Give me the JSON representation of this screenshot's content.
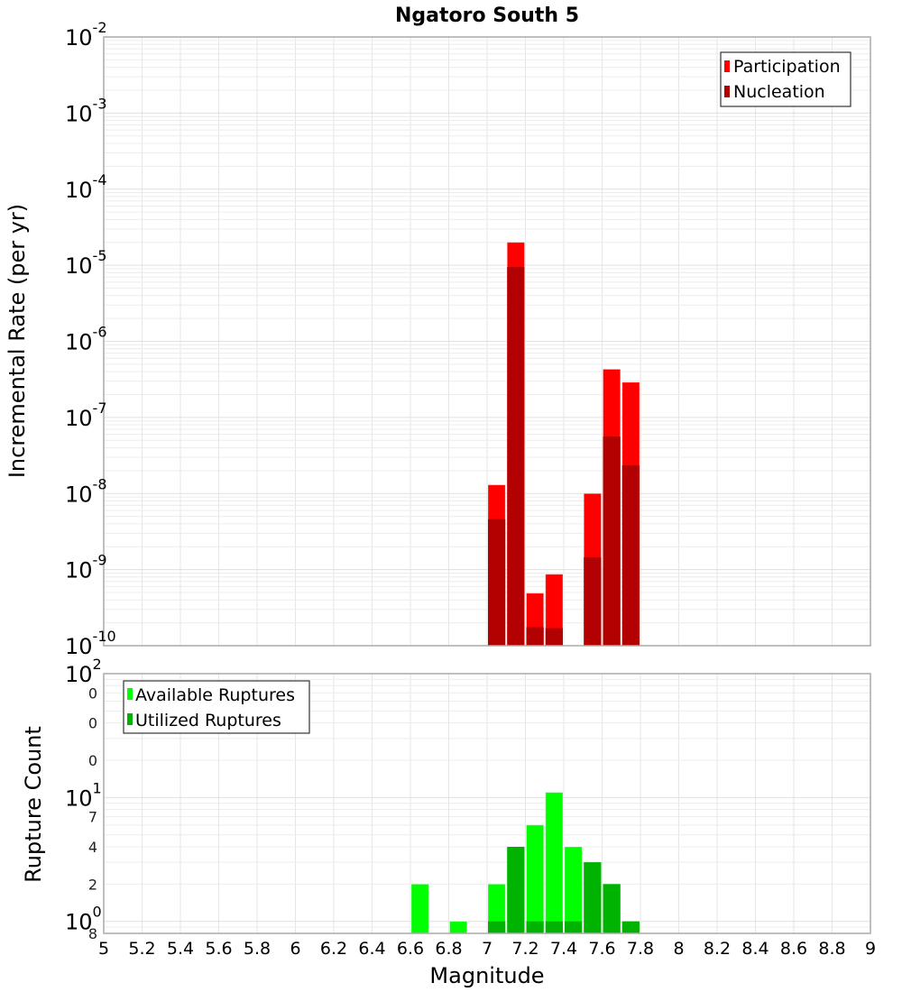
{
  "chart_data": [
    {
      "type": "bar",
      "title": "Ngatoro South 5",
      "xlabel": "Magnitude",
      "ylabel": "Incremental Rate (per yr)",
      "yscale": "log",
      "ylim": [
        1e-10,
        0.01
      ],
      "xlim": [
        5,
        9
      ],
      "grid": true,
      "legend_position": "upper right",
      "bar_width": 0.1,
      "x": [
        7.05,
        7.15,
        7.25,
        7.35,
        7.55,
        7.65,
        7.75
      ],
      "series": [
        {
          "name": "Participation",
          "color": "#ff0000",
          "values": [
            1.3e-08,
            2e-05,
            4.9e-10,
            8.7e-10,
            1e-08,
            4.3e-07,
            2.9e-07
          ]
        },
        {
          "name": "Nucleation",
          "color": "#b30000",
          "values": [
            4.6e-09,
            9.5e-06,
            1.75e-10,
            1.7e-10,
            1.45e-09,
            5.6e-08,
            2.35e-08
          ]
        }
      ],
      "y_ticks": [
        "10^-2",
        "10^-3",
        "10^-4",
        "10^-5",
        "10^-6",
        "10^-7",
        "10^-8",
        "10^-9",
        "10^-10"
      ]
    },
    {
      "type": "bar",
      "title": "",
      "xlabel": "Magnitude",
      "ylabel": "Rupture Count",
      "yscale": "log",
      "ylim": [
        0.8,
        100
      ],
      "xlim": [
        5,
        9
      ],
      "grid": true,
      "legend_position": "upper left",
      "bar_width": 0.1,
      "x": [
        6.65,
        6.85,
        7.05,
        7.15,
        7.25,
        7.35,
        7.45,
        7.55,
        7.65,
        7.75
      ],
      "series": [
        {
          "name": "Available Ruptures",
          "color": "#00ff00",
          "values": [
            2,
            1,
            2,
            4,
            6,
            11,
            4,
            3,
            2,
            1
          ]
        },
        {
          "name": "Utilized Ruptures",
          "color": "#00b300",
          "values": [
            0,
            0,
            1,
            4,
            1,
            1,
            1,
            3,
            2,
            1
          ]
        }
      ],
      "y_ticks": [
        "10^2",
        "7",
        "4",
        "2",
        "10^1",
        "7",
        "4",
        "2",
        "10^0",
        "8"
      ]
    }
  ],
  "figure": {
    "title": "Ngatoro South 5",
    "x_tick_labels": [
      "5",
      "5.2",
      "5.4",
      "5.6",
      "5.8",
      "6",
      "6.2",
      "6.4",
      "6.6",
      "6.8",
      "7",
      "7.2",
      "7.4",
      "7.6",
      "7.8",
      "8",
      "8.2",
      "8.4",
      "8.6",
      "8.8",
      "9"
    ],
    "xlabel": "Magnitude",
    "top": {
      "ylabel": "Incremental Rate (per yr)",
      "legend": [
        {
          "label": "Participation",
          "color": "#ff0000"
        },
        {
          "label": "Nucleation",
          "color": "#b30000"
        }
      ]
    },
    "bottom": {
      "ylabel": "Rupture Count",
      "legend": [
        {
          "label": "Available Ruptures",
          "color": "#00ff00"
        },
        {
          "label": "Utilized Ruptures",
          "color": "#00b300"
        }
      ]
    }
  }
}
